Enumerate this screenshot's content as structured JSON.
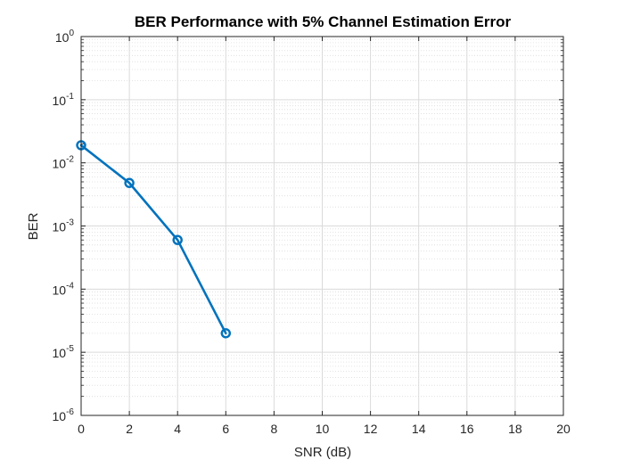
{
  "chart_data": {
    "type": "line",
    "title": "BER Performance with 5% Channel Estimation Error",
    "xlabel": "SNR (dB)",
    "ylabel": "BER",
    "xlim": [
      0,
      20
    ],
    "ylim": [
      1e-06,
      1
    ],
    "yscale": "log",
    "grid": true,
    "minor_grid": true,
    "x_ticks": [
      0,
      2,
      4,
      6,
      8,
      10,
      12,
      14,
      16,
      18,
      20
    ],
    "x_tick_labels": [
      "0",
      "2",
      "4",
      "6",
      "8",
      "10",
      "12",
      "14",
      "16",
      "18",
      "20"
    ],
    "y_ticks": [
      {
        "value": 1e-06,
        "base": "10",
        "exponent": "-6"
      },
      {
        "value": 1e-05,
        "base": "10",
        "exponent": "-5"
      },
      {
        "value": 0.0001,
        "base": "10",
        "exponent": "-4"
      },
      {
        "value": 0.001,
        "base": "10",
        "exponent": "-3"
      },
      {
        "value": 0.01,
        "base": "10",
        "exponent": "-2"
      },
      {
        "value": 0.1,
        "base": "10",
        "exponent": "-1"
      },
      {
        "value": 1,
        "base": "10",
        "exponent": "0"
      }
    ],
    "series": [
      {
        "color": "#0072BD",
        "marker": "circle",
        "x": [
          0,
          2,
          4,
          6
        ],
        "y": [
          0.019,
          0.0048,
          0.0006,
          2e-05
        ]
      }
    ]
  }
}
